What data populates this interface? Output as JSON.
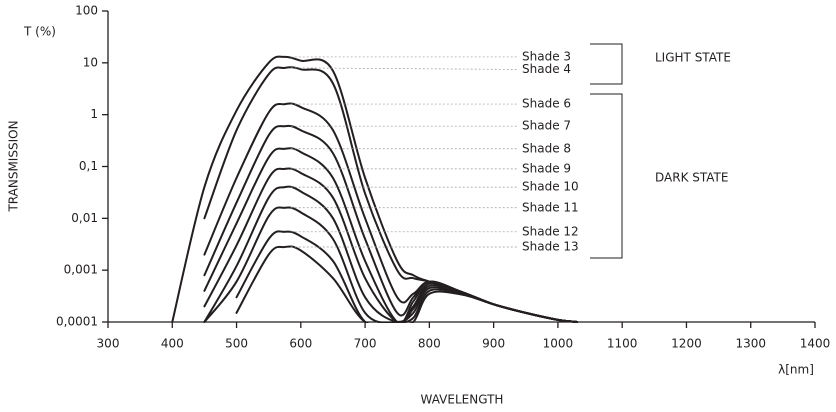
{
  "chart_data": {
    "type": "line",
    "y_label_top": "T (%)",
    "y_label": "TRANSMISSION",
    "x_label": "WAVELENGTH",
    "x_unit": "λ[nm]",
    "annotations": [
      "LIGHT STATE",
      "DARK STATE"
    ],
    "log_y": true,
    "color": "#231f20",
    "xlim": [
      300,
      1400
    ],
    "xticks": [
      300,
      400,
      500,
      600,
      700,
      800,
      900,
      1000,
      1100,
      1200,
      1300,
      1400
    ],
    "ylim": [
      0.0001,
      100
    ],
    "yticks": [
      {
        "value": 0.0001,
        "label": "0,0001"
      },
      {
        "value": 0.001,
        "label": "0,001"
      },
      {
        "value": 0.01,
        "label": "0,01"
      },
      {
        "value": 0.1,
        "label": "0,1"
      },
      1,
      10,
      100
    ],
    "x": [
      400,
      450,
      500,
      550,
      575,
      600,
      650,
      700,
      750,
      775,
      800,
      850,
      900,
      950,
      1000,
      1030
    ],
    "series": [
      {
        "name": "Shade 3",
        "values": [
          0.0001,
          0.04,
          1.2,
          10,
          13,
          11,
          7,
          0.06,
          0.0015,
          0.0008,
          0.0006,
          0.00038,
          0.00022,
          0.00015,
          0.00011,
          0.0001
        ]
      },
      {
        "name": "Shade 4",
        "values": [
          null,
          0.01,
          0.5,
          6,
          8,
          7.5,
          4,
          0.03,
          0.001,
          0.0007,
          0.0006,
          0.00038,
          0.00022,
          0.00015,
          0.00011,
          0.0001
        ]
      },
      {
        "name": "Shade 6",
        "values": [
          null,
          0.002,
          0.06,
          1.1,
          1.6,
          1.4,
          0.5,
          0.01,
          0.0003,
          0.00035,
          0.0006,
          0.00038,
          0.00022,
          0.00015,
          0.00011,
          0.0001
        ]
      },
      {
        "name": "Shade 7",
        "values": [
          null,
          0.0008,
          0.02,
          0.4,
          0.6,
          0.5,
          0.18,
          0.004,
          0.00015,
          0.0003,
          0.0006,
          0.00038,
          0.00022,
          0.00015,
          0.00011,
          0.0001
        ]
      },
      {
        "name": "Shade 8",
        "values": [
          null,
          0.0004,
          0.008,
          0.15,
          0.22,
          0.19,
          0.06,
          0.0015,
          0.0001,
          0.00025,
          0.0006,
          0.00038,
          0.00022,
          0.00015,
          0.00011,
          0.0001
        ]
      },
      {
        "name": "Shade 9",
        "values": [
          null,
          0.0002,
          0.003,
          0.06,
          0.09,
          0.075,
          0.025,
          0.0007,
          0.0001,
          0.0002,
          0.00055,
          0.00038,
          0.00022,
          0.00015,
          0.00011,
          0.0001
        ]
      },
      {
        "name": "Shade 10",
        "values": [
          null,
          0.0001,
          0.0012,
          0.025,
          0.04,
          0.033,
          0.01,
          0.0003,
          0.0001,
          0.00018,
          0.0005,
          0.00037,
          0.00022,
          0.00015,
          0.00011,
          0.0001
        ]
      },
      {
        "name": "Shade 11",
        "values": [
          null,
          0.0001,
          0.0006,
          0.011,
          0.016,
          0.013,
          0.004,
          0.00015,
          0.0001,
          0.00015,
          0.00045,
          0.00036,
          0.00022,
          0.00015,
          0.00011,
          0.0001
        ]
      },
      {
        "name": "Shade 12",
        "values": [
          null,
          null,
          0.0003,
          0.004,
          0.0055,
          0.0045,
          0.0015,
          0.0001,
          0.0001,
          0.00012,
          0.0004,
          0.00035,
          0.00022,
          0.00015,
          0.00011,
          0.0001
        ]
      },
      {
        "name": "Shade 13",
        "values": [
          null,
          null,
          0.00015,
          0.002,
          0.0028,
          0.0024,
          0.0007,
          0.0001,
          0.0001,
          0.0001,
          0.00035,
          0.00034,
          0.00022,
          0.00015,
          0.00011,
          0.0001
        ]
      }
    ]
  }
}
